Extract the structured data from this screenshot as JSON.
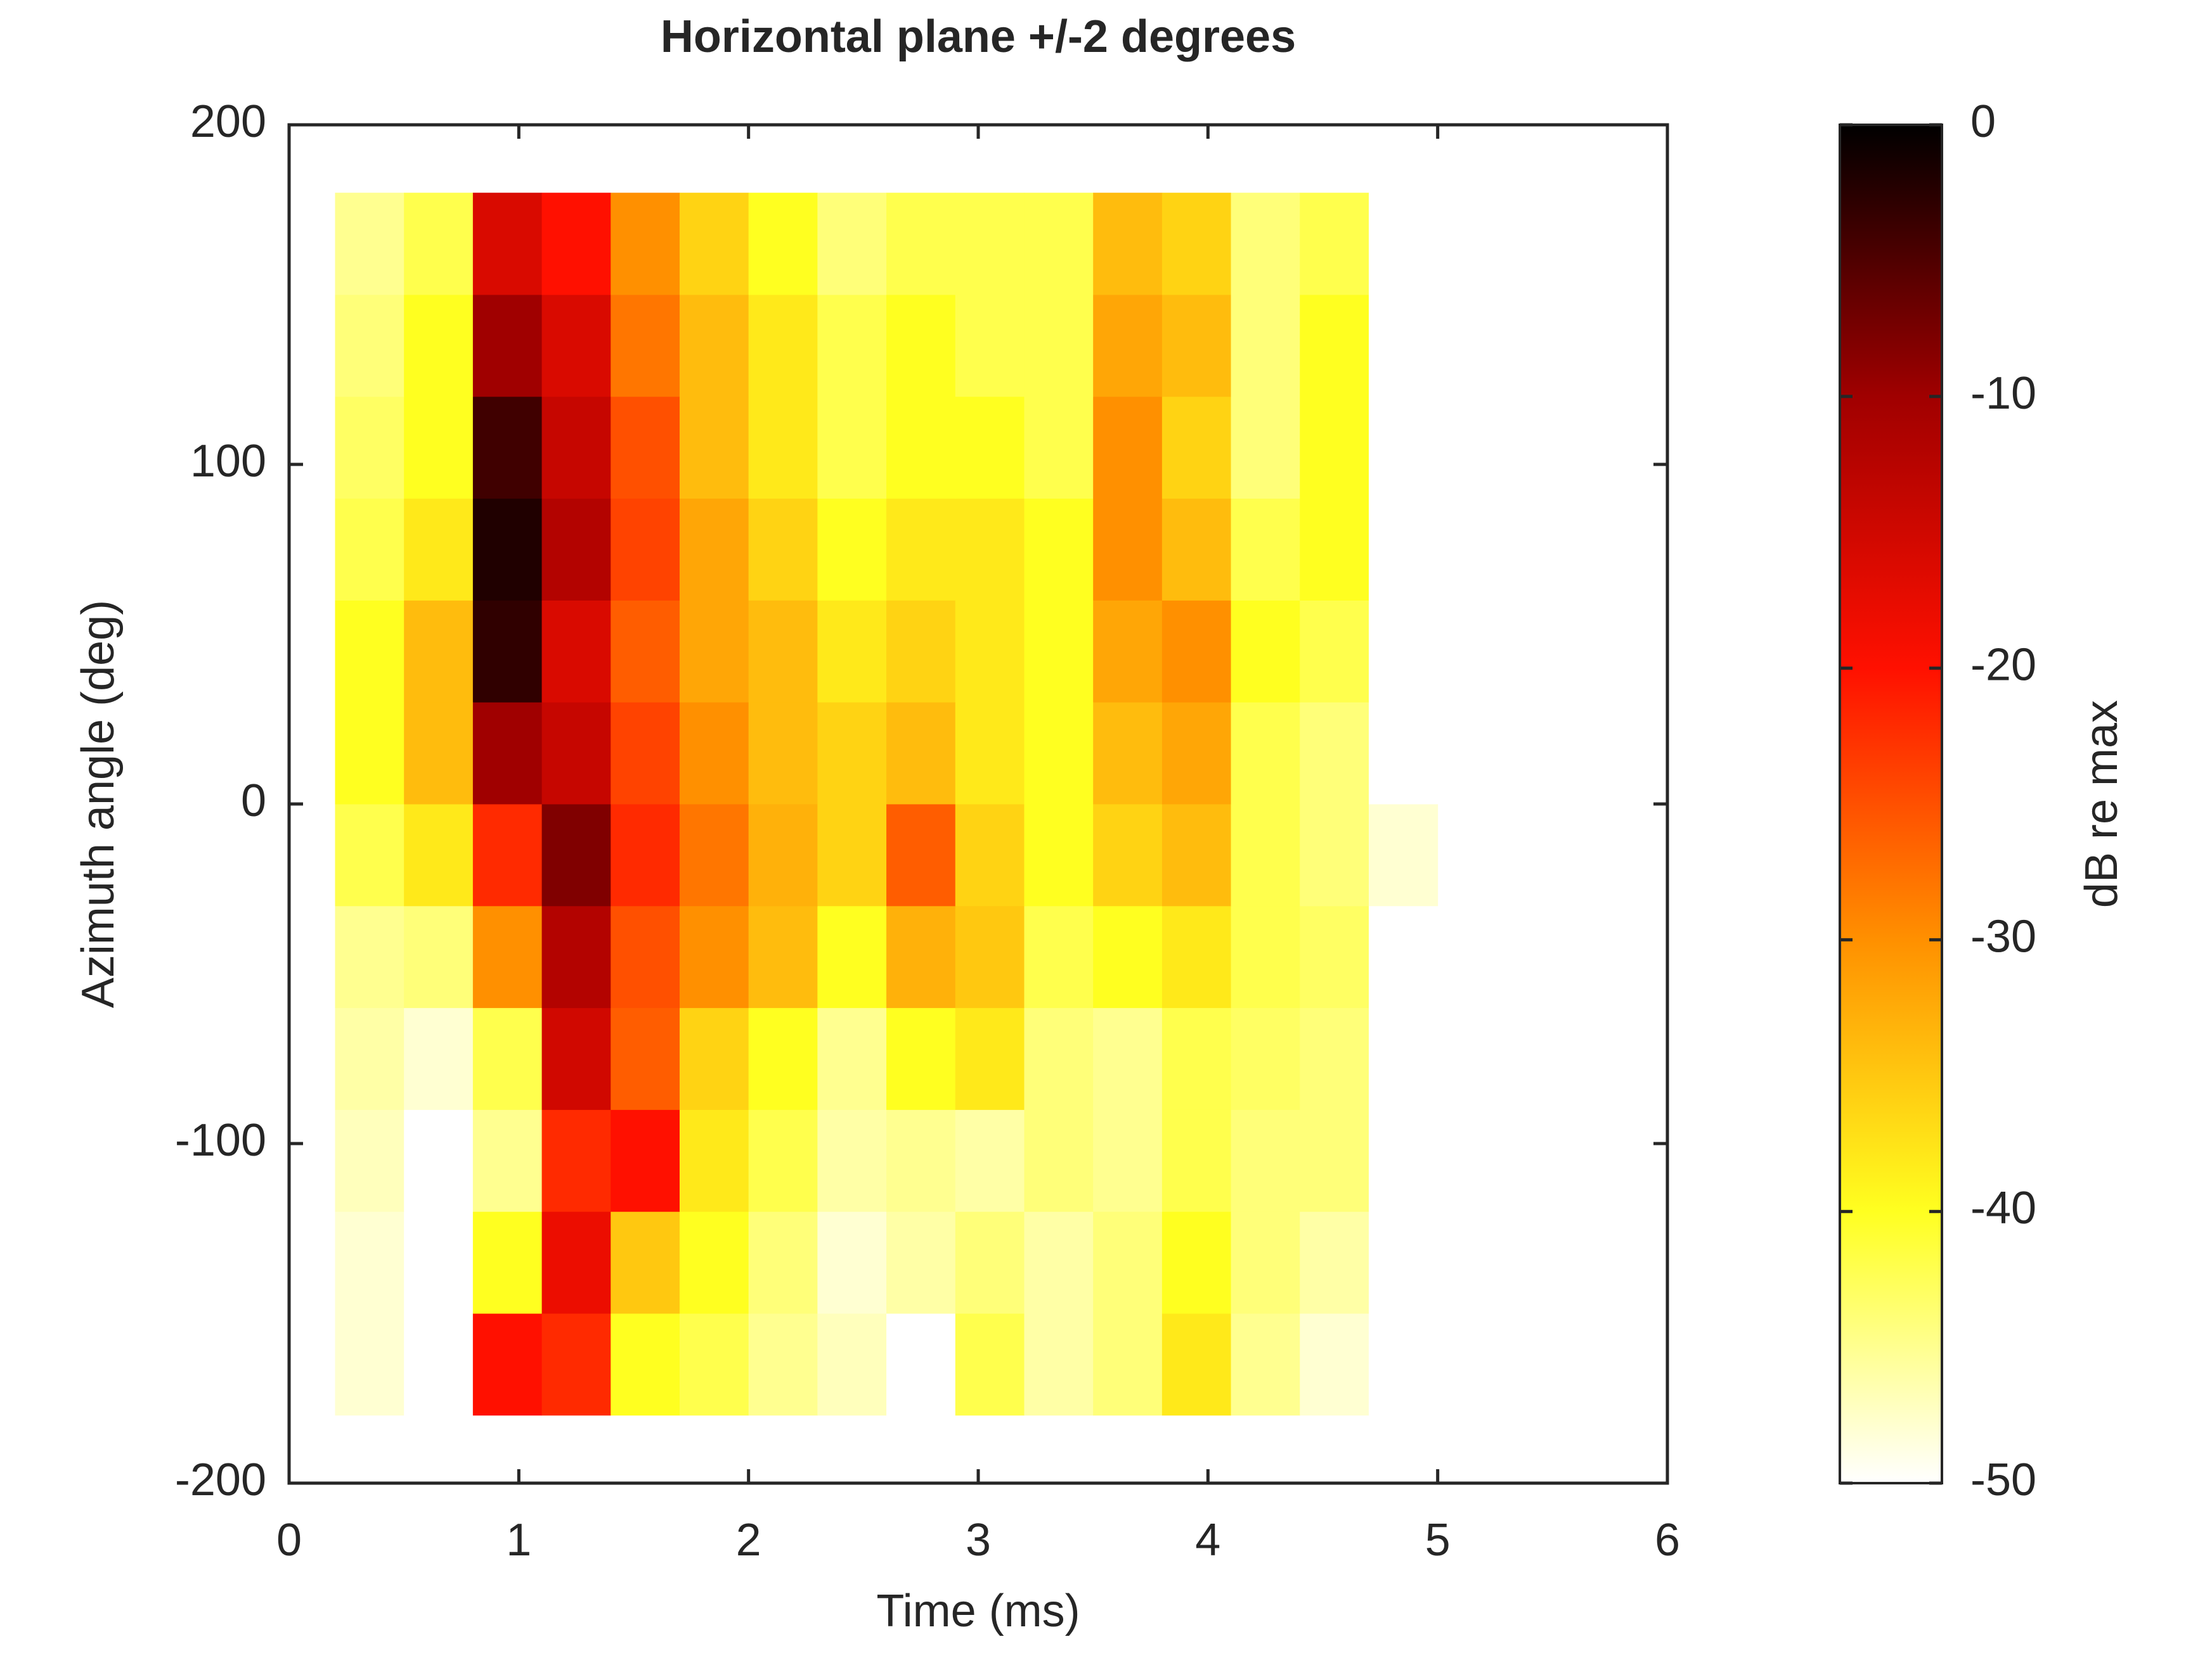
{
  "chart_data": {
    "type": "heatmap",
    "title": "Horizontal plane +/-2 degrees",
    "xlabel": "Time (ms)",
    "ylabel": "Azimuth angle (deg)",
    "x_edges": [
      0.2,
      0.5,
      0.8,
      1.1,
      1.4,
      1.7,
      2.0,
      2.3,
      2.6,
      2.9,
      3.2,
      3.5,
      3.8,
      4.1,
      4.4,
      4.7,
      5.0
    ],
    "y_edges": [
      -180,
      -150,
      -120,
      -90,
      -60,
      -30,
      0,
      30,
      60,
      90,
      120,
      150,
      180
    ],
    "z": [
      [
        -48,
        -50,
        -20,
        -22,
        -40,
        -42,
        -45,
        -47,
        -50,
        -42,
        -46,
        -44,
        -38,
        -45,
        -48,
        -50
      ],
      [
        -48,
        -50,
        -40,
        -18,
        -35,
        -40,
        -44,
        -48,
        -46,
        -44,
        -46,
        -44,
        -40,
        -44,
        -46,
        -50
      ],
      [
        -47,
        -50,
        -45,
        -22,
        -20,
        -38,
        -42,
        -46,
        -45,
        -46,
        -44,
        -45,
        -42,
        -44,
        -44,
        -50
      ],
      [
        -46,
        -48,
        -42,
        -15,
        -26,
        -36,
        -40,
        -45,
        -40,
        -38,
        -44,
        -45,
        -42,
        -43,
        -44,
        -50
      ],
      [
        -45,
        -44,
        -30,
        -12,
        -25,
        -30,
        -34,
        -40,
        -33,
        -35,
        -42,
        -40,
        -38,
        -42,
        -43,
        -50
      ],
      [
        -42,
        -38,
        -22,
        -8,
        -22,
        -28,
        -33,
        -36,
        -26,
        -36,
        -40,
        -36,
        -34,
        -42,
        -44,
        -48
      ],
      [
        -40,
        -34,
        -10,
        -14,
        -24,
        -30,
        -34,
        -36,
        -34,
        -38,
        -40,
        -34,
        -32,
        -42,
        -44,
        -50
      ],
      [
        -40,
        -34,
        -3,
        -16,
        -26,
        -32,
        -34,
        -38,
        -36,
        -38,
        -40,
        -32,
        -30,
        -40,
        -42,
        -50
      ],
      [
        -42,
        -38,
        -2,
        -12,
        -24,
        -32,
        -36,
        -40,
        -38,
        -38,
        -40,
        -30,
        -34,
        -42,
        -40,
        -50
      ],
      [
        -43,
        -40,
        -4,
        -14,
        -25,
        -34,
        -38,
        -42,
        -40,
        -40,
        -42,
        -30,
        -36,
        -44,
        -40,
        -50
      ],
      [
        -44,
        -40,
        -10,
        -16,
        -28,
        -34,
        -38,
        -42,
        -40,
        -42,
        -42,
        -32,
        -34,
        -44,
        -40,
        -50
      ],
      [
        -45,
        -42,
        -16,
        -20,
        -30,
        -36,
        -40,
        -44,
        -42,
        -42,
        -42,
        -34,
        -36,
        -44,
        -42,
        -50
      ]
    ],
    "xlim": [
      0,
      6
    ],
    "xticks": [
      0,
      1,
      2,
      3,
      4,
      5,
      6
    ],
    "ylim": [
      -200,
      200
    ],
    "yticks": [
      -200,
      -100,
      0,
      100,
      200
    ],
    "colorbar": {
      "label": "dB re max",
      "clim": [
        -50,
        0
      ],
      "ticks": [
        -50,
        -40,
        -30,
        -20,
        -10,
        0
      ],
      "colors": [
        "#ffffff",
        "#ffff20",
        "#ff9000",
        "#ff1000",
        "#a00000",
        "#000000"
      ]
    }
  }
}
